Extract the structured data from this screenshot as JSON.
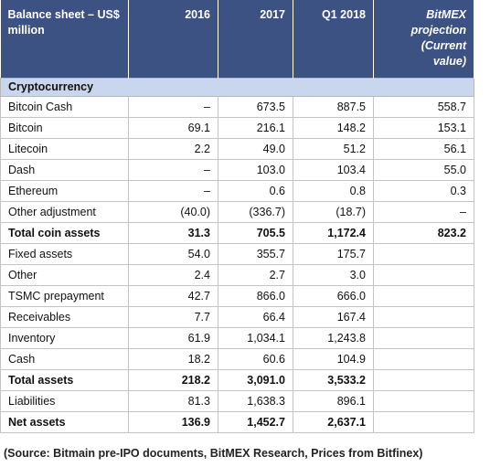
{
  "table": {
    "header": [
      "Balance sheet – US$ million",
      "2016",
      "2017",
      "Q1 2018",
      "BitMEX projection (Current value)"
    ],
    "section": "Cryptocurrency",
    "rows": [
      {
        "cells": [
          "Bitcoin Cash",
          "–",
          "673.5",
          "887.5",
          "558.7"
        ]
      },
      {
        "cells": [
          "Bitcoin",
          "69.1",
          "216.1",
          "148.2",
          "153.1"
        ]
      },
      {
        "cells": [
          "Litecoin",
          "2.2",
          "49.0",
          "51.2",
          "56.1"
        ]
      },
      {
        "cells": [
          "Dash",
          "–",
          "103.0",
          "103.4",
          "55.0"
        ]
      },
      {
        "cells": [
          "Ethereum",
          "–",
          "0.6",
          "0.8",
          "0.3"
        ]
      },
      {
        "cells": [
          "Other adjustment",
          "(40.0)",
          "(336.7)",
          "(18.7)",
          "–"
        ]
      },
      {
        "cells": [
          "Total coin assets",
          "31.3",
          "705.5",
          "1,172.4",
          "823.2"
        ],
        "bold": true
      },
      {
        "cells": [
          "Fixed assets",
          "54.0",
          "355.7",
          "175.7",
          null
        ]
      },
      {
        "cells": [
          "Other",
          "2.4",
          "2.7",
          "3.0",
          null
        ]
      },
      {
        "cells": [
          "TSMC prepayment",
          "42.7",
          "866.0",
          "666.0",
          null
        ]
      },
      {
        "cells": [
          "Receivables",
          "7.7",
          "66.4",
          "167.4",
          null
        ]
      },
      {
        "cells": [
          "Inventory",
          "61.9",
          "1,034.1",
          "1,243.8",
          null
        ]
      },
      {
        "cells": [
          "Cash",
          "18.2",
          "60.6",
          "104.9",
          null
        ]
      },
      {
        "cells": [
          "Total assets",
          "218.2",
          "3,091.0",
          "3,533.2",
          null
        ],
        "bold": true
      },
      {
        "cells": [
          "Liabilities",
          "81.3",
          "1,638.3",
          "896.1",
          null
        ]
      },
      {
        "cells": [
          "Net assets",
          "136.9",
          "1,452.7",
          "2,637.1",
          null
        ],
        "bold": true
      }
    ]
  },
  "source": "(Source: Bitmain pre-IPO documents, BitMEX Research, Prices from Bitfinex)"
}
